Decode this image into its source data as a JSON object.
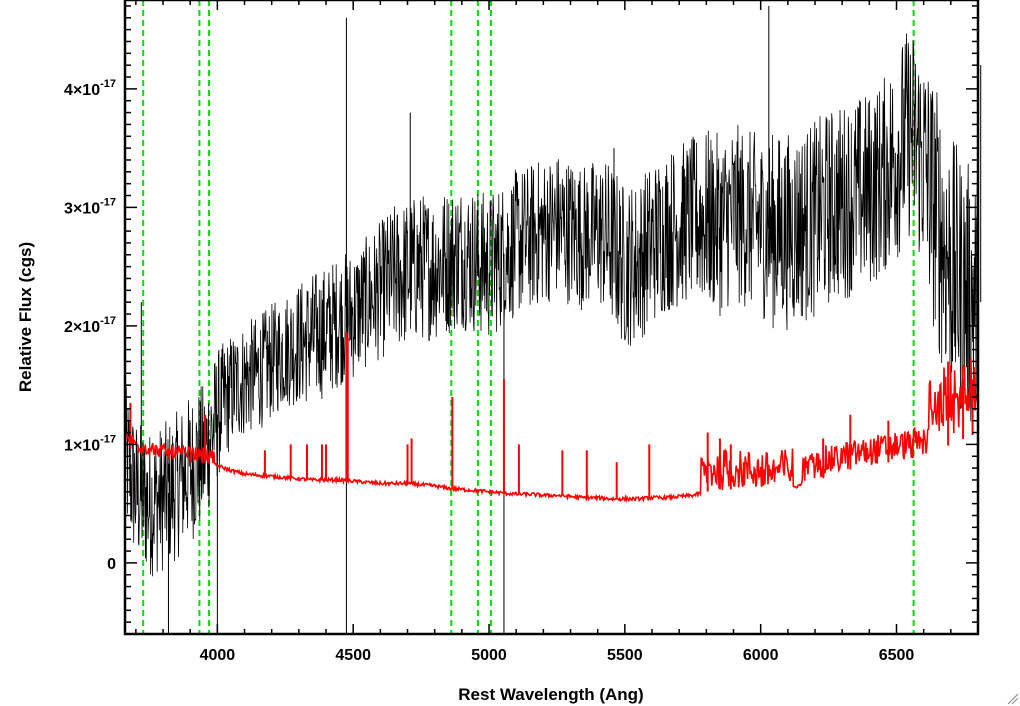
{
  "chart_data": {
    "type": "line",
    "xlabel": "Rest Wavelength (Ang)",
    "ylabel": "Relative Flux (cgs)",
    "xlim": [
      3660,
      6800
    ],
    "ylim": [
      -6e-18,
      4.75e-17
    ],
    "x_ticks": [
      {
        "value": 4000,
        "label": "4000"
      },
      {
        "value": 4500,
        "label": "4500"
      },
      {
        "value": 5000,
        "label": "5000"
      },
      {
        "value": 5500,
        "label": "5500"
      },
      {
        "value": 6000,
        "label": "6000"
      },
      {
        "value": 6500,
        "label": "6500"
      }
    ],
    "y_ticks": [
      {
        "value": 0,
        "mantissa": "0",
        "exponent": ""
      },
      {
        "value": 1e-17,
        "mantissa": "1×10",
        "exponent": "-17"
      },
      {
        "value": 2e-17,
        "mantissa": "2×10",
        "exponent": "-17"
      },
      {
        "value": 3e-17,
        "mantissa": "3×10",
        "exponent": "-17"
      },
      {
        "value": 4e-17,
        "mantissa": "4×10",
        "exponent": "-17"
      }
    ],
    "grid": false,
    "legend": "none",
    "series": [
      {
        "color": "#000000",
        "style": "noisy spectrum",
        "x": [
          3660,
          3700,
          3750,
          3800,
          3850,
          3900,
          3950,
          4000,
          4050,
          4100,
          4150,
          4200,
          4250,
          4300,
          4350,
          4400,
          4450,
          4500,
          4550,
          4600,
          4650,
          4700,
          4750,
          4800,
          4850,
          4900,
          4950,
          5000,
          5050,
          5100,
          5150,
          5200,
          5250,
          5300,
          5350,
          5400,
          5450,
          5500,
          5550,
          5600,
          5650,
          5700,
          5750,
          5800,
          5850,
          5900,
          5950,
          6000,
          6050,
          6100,
          6150,
          6200,
          6250,
          6300,
          6350,
          6400,
          6450,
          6500,
          6550,
          6600,
          6650,
          6700,
          6750,
          6800
        ],
        "y": [
          9e-18,
          6e-18,
          5e-18,
          5.5e-18,
          6.5e-18,
          8e-18,
          9e-18,
          1.25e-17,
          1.45e-17,
          1.55e-17,
          1.6e-17,
          1.7e-17,
          1.8e-17,
          1.85e-17,
          1.9e-17,
          1.95e-17,
          2.05e-17,
          2.1e-17,
          2.2e-17,
          2.3e-17,
          2.4e-17,
          2.45e-17,
          2.5e-17,
          2.5e-17,
          2.55e-17,
          2.6e-17,
          2.55e-17,
          2.5e-17,
          2.6e-17,
          2.7e-17,
          2.75e-17,
          2.8e-17,
          2.85e-17,
          2.8e-17,
          2.75e-17,
          2.8e-17,
          2.7e-17,
          2.5e-17,
          2.55e-17,
          2.7e-17,
          2.8e-17,
          2.85e-17,
          2.9e-17,
          2.9e-17,
          2.85e-17,
          2.95e-17,
          2.9e-17,
          2.85e-17,
          2.8e-17,
          2.8e-17,
          2.85e-17,
          2.9e-17,
          3e-17,
          3.05e-17,
          3.1e-17,
          3.15e-17,
          3.25e-17,
          3.45e-17,
          3.65e-17,
          3.4e-17,
          2.9e-17,
          2.5e-17,
          2.3e-17,
          2.2e-17
        ],
        "noise": [
          4.5e-18,
          4.5e-18,
          4.5e-18,
          4.5e-18,
          4.5e-18,
          4.5e-18,
          4.5e-18,
          4e-18,
          3.5e-18,
          3.5e-18,
          3.5e-18,
          3.5e-18,
          3.5e-18,
          3.8e-18,
          4e-18,
          4e-18,
          4e-18,
          4e-18,
          4e-18,
          4.2e-18,
          4.5e-18,
          4.5e-18,
          4.5e-18,
          4.5e-18,
          4.5e-18,
          4.5e-18,
          4.5e-18,
          4.5e-18,
          4.5e-18,
          4.5e-18,
          4.5e-18,
          4.5e-18,
          4.5e-18,
          4.5e-18,
          4.5e-18,
          4.5e-18,
          5e-18,
          5e-18,
          5e-18,
          5e-18,
          5e-18,
          5e-18,
          5e-18,
          5.5e-18,
          5.5e-18,
          5.5e-18,
          5.5e-18,
          5.5e-18,
          6e-18,
          6e-18,
          6e-18,
          6e-18,
          6e-18,
          6e-18,
          6e-18,
          6e-18,
          6e-18,
          6.5e-18,
          6.5e-18,
          7e-18,
          8e-18,
          8e-18,
          8e-18,
          8e-18
        ],
        "spikes": [
          [
            4475,
            4.6e-17
          ],
          [
            4475,
            -6e-18
          ],
          [
            5055,
            -6e-18
          ],
          [
            6030,
            4.7e-17
          ],
          [
            6810,
            4.2e-17
          ],
          [
            5460,
            3.5e-17
          ],
          [
            3720,
            2.2e-17
          ],
          [
            4710,
            3.8e-17
          ],
          [
            4000,
            -6e-18
          ],
          [
            3820,
            -6e-18
          ]
        ]
      },
      {
        "color": "#ff0000",
        "style": "error spectrum",
        "x": [
          3660,
          3700,
          3750,
          3800,
          3850,
          3900,
          3950,
          4000,
          4050,
          4100,
          4150,
          4200,
          4250,
          4300,
          4350,
          4400,
          4450,
          4500,
          4550,
          4600,
          4650,
          4700,
          4750,
          4800,
          4850,
          4900,
          4950,
          5000,
          5050,
          5100,
          5150,
          5200,
          5250,
          5300,
          5350,
          5400,
          5450,
          5500,
          5550,
          5600,
          5650,
          5700,
          5750,
          5800,
          5850,
          5900,
          5950,
          6000,
          6050,
          6100,
          6150,
          6200,
          6250,
          6300,
          6350,
          6400,
          6450,
          6500,
          6550,
          6600,
          6650,
          6700,
          6750,
          6800
        ],
        "y": [
          9.8e-18,
          9.5e-18,
          9e-18,
          8.8e-18,
          8.7e-18,
          8.6e-18,
          8.5e-18,
          8.2e-18,
          7.8e-18,
          7.5e-18,
          7.4e-18,
          7.3e-18,
          7.2e-18,
          7.1e-18,
          7e-18,
          7e-18,
          7e-18,
          6.9e-18,
          6.8e-18,
          6.7e-18,
          6.7e-18,
          6.7e-18,
          6.6e-18,
          6.5e-18,
          6.3e-18,
          6.2e-18,
          6.1e-18,
          6e-18,
          5.9e-18,
          5.8e-18,
          5.8e-18,
          5.7e-18,
          5.7e-18,
          5.6e-18,
          5.5e-18,
          5.5e-18,
          5.4e-18,
          5.4e-18,
          5.4e-18,
          5.5e-18,
          5.5e-18,
          5.6e-18,
          5.7e-18,
          6e-18,
          6.2e-18,
          6.2e-18,
          6.1e-18,
          6e-18,
          6e-18,
          6.2e-18,
          6.6e-18,
          7e-18,
          7.4e-18,
          7.7e-18,
          8e-18,
          8.2e-18,
          8.4e-18,
          8.6e-18,
          8.8e-18,
          9e-18,
          9.5e-18,
          1e-17,
          1.05e-17,
          1.1e-17
        ],
        "spikes": [
          [
            3680,
            1.35e-17
          ],
          [
            3955,
            1.25e-17
          ],
          [
            4175,
            9.5e-18
          ],
          [
            4270,
            1e-17
          ],
          [
            4330,
            1e-17
          ],
          [
            4385,
            1e-17
          ],
          [
            4400,
            1e-17
          ],
          [
            4475,
            1.95e-17
          ],
          [
            4480,
            1.9e-17
          ],
          [
            4700,
            1e-17
          ],
          [
            4715,
            1.05e-17
          ],
          [
            4865,
            1.4e-17
          ],
          [
            5055,
            1.55e-17
          ],
          [
            5110,
            1e-17
          ],
          [
            5270,
            9.5e-18
          ],
          [
            5360,
            9.5e-18
          ],
          [
            5470,
            8.5e-18
          ],
          [
            5590,
            1e-17
          ],
          [
            5805,
            1.1e-17
          ],
          [
            5850,
            1.05e-17
          ],
          [
            5890,
            1e-17
          ],
          [
            6230,
            1.05e-17
          ],
          [
            6330,
            1.25e-17
          ],
          [
            6470,
            1.2e-17
          ],
          [
            6560,
            1.05e-17
          ],
          [
            6690,
            1.7e-17
          ],
          [
            6745,
            1.55e-17
          ],
          [
            6780,
            1.55e-17
          ]
        ]
      }
    ],
    "vertical_markers": {
      "color": "#00dd00",
      "style": "dashed",
      "x": [
        3727,
        3934,
        3969,
        4861,
        4959,
        5007,
        6563
      ]
    }
  }
}
